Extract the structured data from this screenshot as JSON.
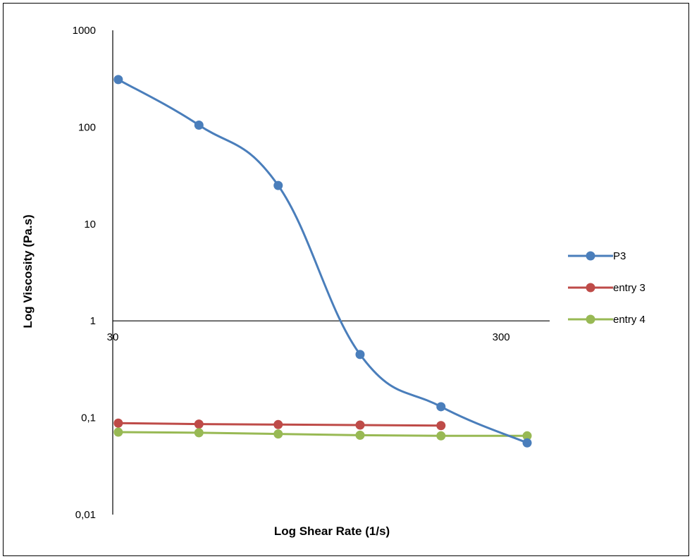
{
  "chart_data": {
    "type": "line",
    "xlabel": "Log Shear Rate (1/s)",
    "ylabel": "Log Viscosity (Pa.s)",
    "x_scale": "log",
    "y_scale": "log",
    "xlim": [
      30,
      400
    ],
    "ylim": [
      0.01,
      1000
    ],
    "x_tick_labels": [
      {
        "value": 30,
        "label": "30"
      },
      {
        "value": 300,
        "label": "300"
      }
    ],
    "y_tick_labels": [
      {
        "value": 1000,
        "label": "1000"
      },
      {
        "value": 100,
        "label": "100"
      },
      {
        "value": 10,
        "label": "10"
      },
      {
        "value": 1,
        "label": "1"
      },
      {
        "value": 0.1,
        "label": "0,1"
      },
      {
        "value": 0.01,
        "label": "0,01"
      }
    ],
    "x_axis_crosses_y_at": 1,
    "grid": false,
    "legend_position": "right",
    "series": [
      {
        "name": "P3",
        "color": "#4a7ebb",
        "smooth": true,
        "x": [
          31,
          50,
          80,
          130,
          210,
          350
        ],
        "y": [
          310,
          105,
          25,
          0.45,
          0.13,
          0.055
        ]
      },
      {
        "name": "entry 3",
        "color": "#be4b48",
        "smooth": false,
        "x": [
          31,
          50,
          80,
          130,
          210
        ],
        "y": [
          0.088,
          0.086,
          0.085,
          0.084,
          0.083
        ]
      },
      {
        "name": "entry 4",
        "color": "#98b954",
        "smooth": false,
        "x": [
          31,
          50,
          80,
          130,
          210,
          350
        ],
        "y": [
          0.071,
          0.07,
          0.068,
          0.066,
          0.065,
          0.065
        ]
      }
    ]
  }
}
